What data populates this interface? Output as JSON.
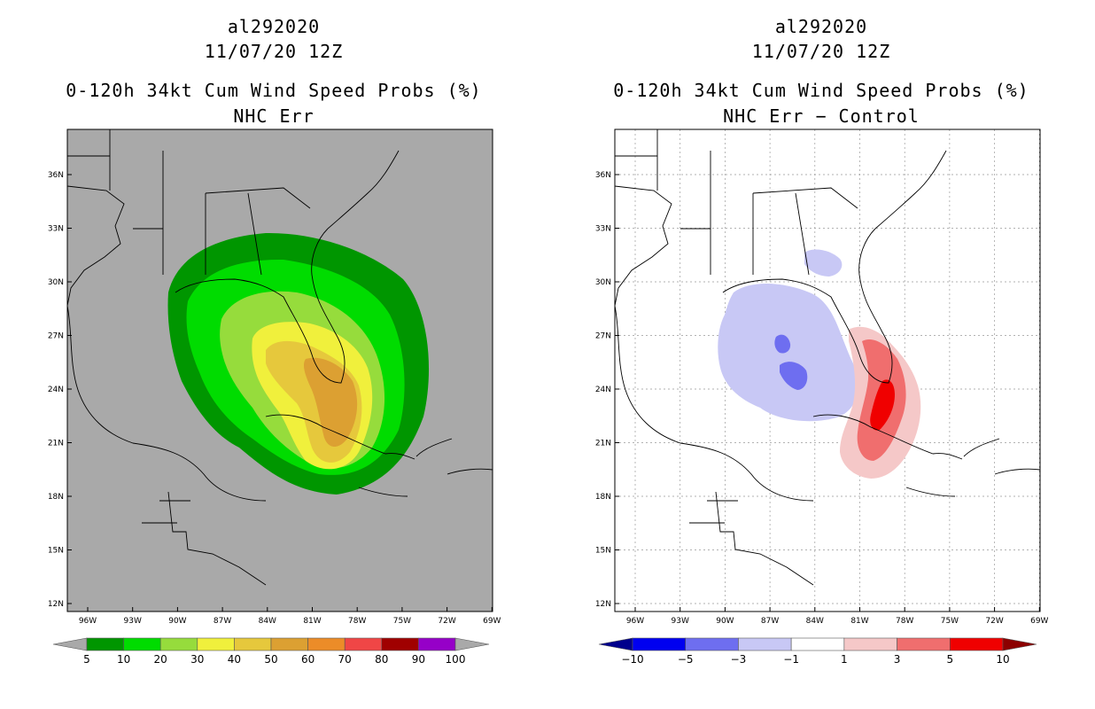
{
  "left_panel": {
    "storm_id": "al292020",
    "datetime": "11/07/20 12Z",
    "product": "0-120h 34kt Cum Wind Speed Probs (%)",
    "subtitle": "NHC Err",
    "background": "#a9a9a9",
    "colorbar": {
      "labels": [
        "5",
        "10",
        "20",
        "30",
        "40",
        "50",
        "60",
        "70",
        "80",
        "90",
        "100"
      ],
      "colors": [
        "#a9a9a9",
        "#009600",
        "#00dc00",
        "#96dc3c",
        "#f0f03c",
        "#e6c83c",
        "#dca032",
        "#ec8c28",
        "#f04646",
        "#a00000",
        "#9600c8",
        "#a9a9a9"
      ]
    }
  },
  "right_panel": {
    "storm_id": "al292020",
    "datetime": "11/07/20 12Z",
    "product": "0-120h 34kt Cum Wind Speed Probs (%)",
    "subtitle": "NHC Err − Control",
    "background": "#ffffff",
    "colorbar": {
      "labels": [
        "−10",
        "−5",
        "−3",
        "−1",
        "1",
        "3",
        "5",
        "10"
      ],
      "colors": [
        "#00008c",
        "#0000f0",
        "#6e6ef0",
        "#c8c8f5",
        "#ffffff",
        "#f5c8c8",
        "#f06e6e",
        "#f00000",
        "#8c0000"
      ]
    }
  },
  "axes": {
    "lon_labels": [
      "96W",
      "93W",
      "90W",
      "87W",
      "84W",
      "81W",
      "78W",
      "75W",
      "72W",
      "69W"
    ],
    "lat_labels": [
      "36N",
      "33N",
      "30N",
      "27N",
      "24N",
      "21N",
      "18N",
      "15N",
      "12N"
    ]
  }
}
